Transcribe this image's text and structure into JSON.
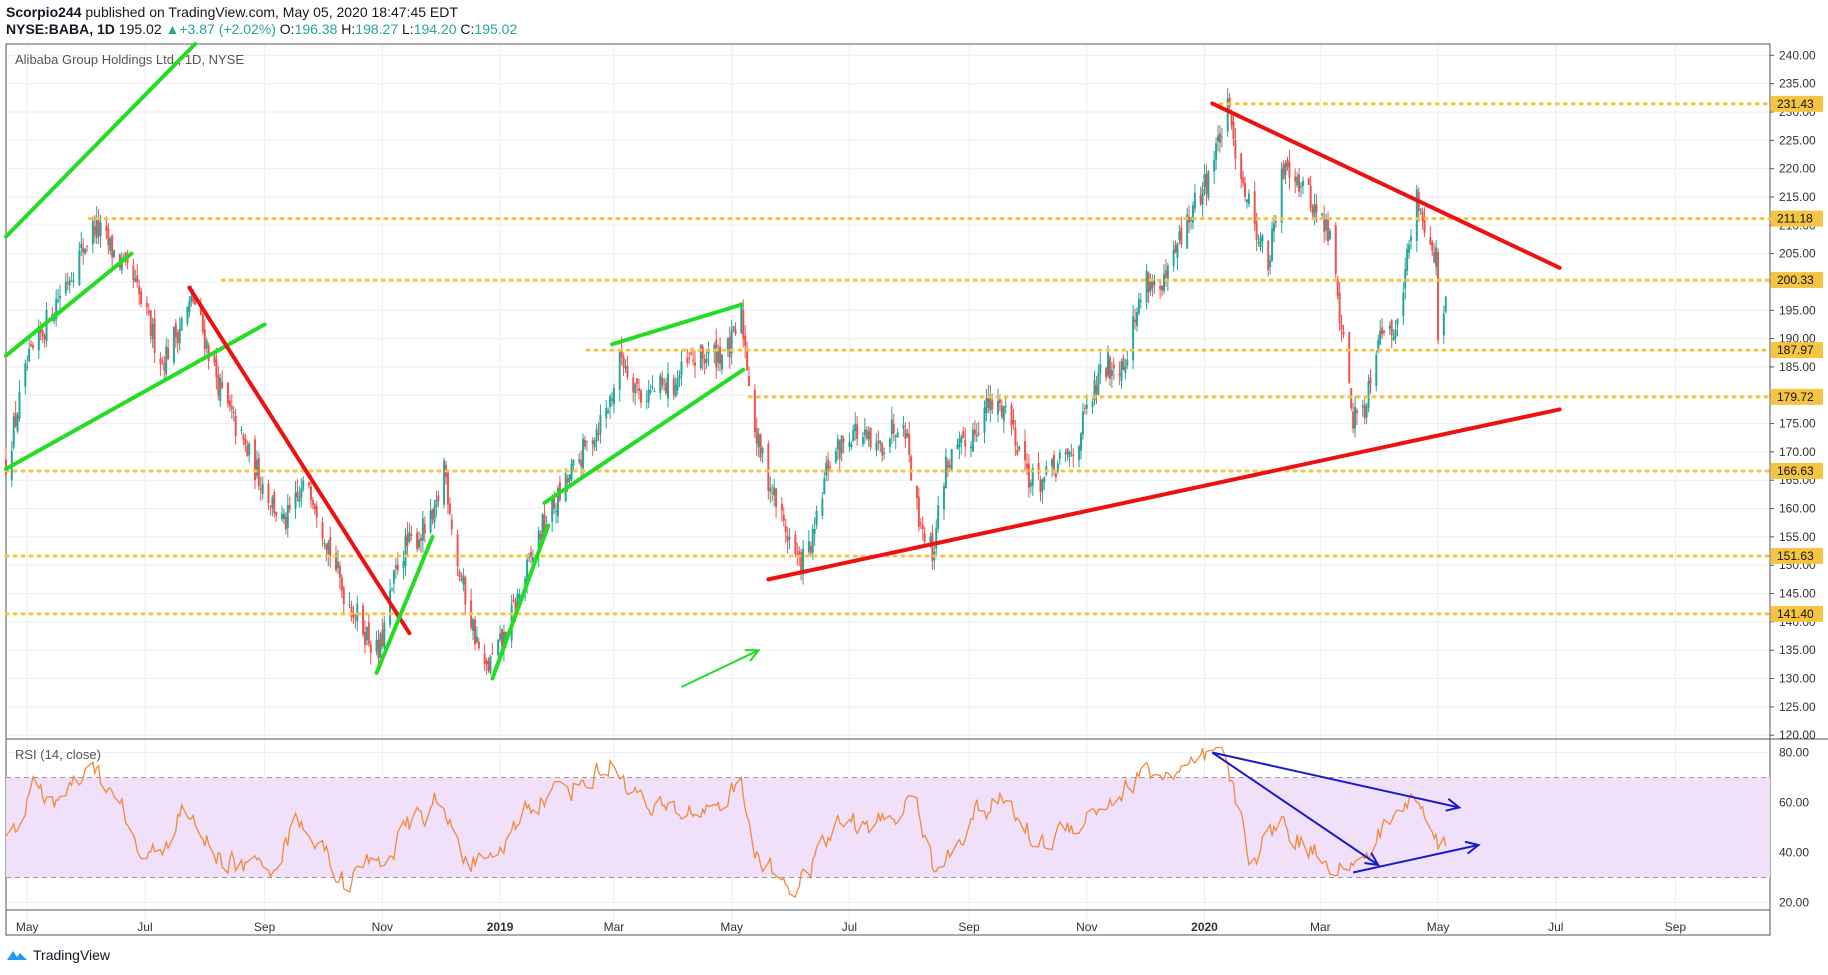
{
  "header": {
    "author": "Scorpio244",
    "published_text": "published on TradingView.com, May 05, 2020 18:47:45 EDT",
    "symbol": "NYSE:BABA, 1D",
    "last_price": "195.02",
    "change": "+3.87 (+2.02%)",
    "open_label": "O:",
    "open": "196.38",
    "high_label": "H:",
    "high": "198.27",
    "low_label": "L:",
    "low": "194.20",
    "close_label": "C:",
    "close": "195.02"
  },
  "footer": {
    "brand": "TradingView",
    "logo_icon": "tradingview-logo-icon"
  },
  "colors": {
    "candle_up": "#26a69a",
    "candle_down": "#ef5350",
    "trend_green": "#22dd22",
    "trend_red": "#ee1111",
    "level_line": "#f5c542",
    "level_badge": "#f5c542",
    "rsi_line": "#f08a3c",
    "rsi_band": "#f0e0fa",
    "rsi_arrows": "#1a1acc",
    "grid": "#eeeeee"
  },
  "chart_data": [
    {
      "type": "candlestick",
      "title": "Alibaba Group Holdings Ltd., 1D, NYSE",
      "x_ticks": [
        "May",
        "Jul",
        "Sep",
        "Nov",
        "2019",
        "Mar",
        "May",
        "Jul",
        "Sep",
        "Nov",
        "2020",
        "Mar",
        "May",
        "Jul",
        "Sep"
      ],
      "x_range": [
        "2018-04-20",
        "2020-10-20"
      ],
      "ylim": [
        119.5,
        242
      ],
      "y_ticks": [
        120,
        125,
        130,
        135,
        140,
        145,
        150,
        155,
        160,
        165,
        170,
        175,
        180,
        185,
        190,
        195,
        200,
        205,
        210,
        215,
        220,
        225,
        230,
        235,
        240
      ],
      "grid": true,
      "price_anchors": [
        [
          "2018-04-20",
          168
        ],
        [
          "2018-05-01",
          185
        ],
        [
          "2018-05-15",
          196
        ],
        [
          "2018-06-05",
          210
        ],
        [
          "2018-06-25",
          200
        ],
        [
          "2018-07-10",
          186
        ],
        [
          "2018-07-26",
          197
        ],
        [
          "2018-08-10",
          180
        ],
        [
          "2018-08-20",
          172
        ],
        [
          "2018-09-11",
          157
        ],
        [
          "2018-09-24",
          165
        ],
        [
          "2018-10-11",
          146
        ],
        [
          "2018-10-30",
          134
        ],
        [
          "2018-11-10",
          152
        ],
        [
          "2018-11-28",
          158
        ],
        [
          "2018-12-03",
          168
        ],
        [
          "2018-12-10",
          150
        ],
        [
          "2018-12-24",
          131
        ],
        [
          "2019-01-03",
          137
        ],
        [
          "2019-01-22",
          156
        ],
        [
          "2019-02-10",
          168
        ],
        [
          "2019-02-26",
          178
        ],
        [
          "2019-03-05",
          187
        ],
        [
          "2019-03-15",
          180
        ],
        [
          "2019-04-01",
          182
        ],
        [
          "2019-04-10",
          186
        ],
        [
          "2019-04-30",
          188
        ],
        [
          "2019-05-06",
          194
        ],
        [
          "2019-05-14",
          172
        ],
        [
          "2019-05-25",
          160
        ],
        [
          "2019-06-05",
          150
        ],
        [
          "2019-06-12",
          154
        ],
        [
          "2019-06-20",
          168
        ],
        [
          "2019-07-03",
          174
        ],
        [
          "2019-07-15",
          170
        ],
        [
          "2019-07-29",
          177
        ],
        [
          "2019-08-05",
          160
        ],
        [
          "2019-08-13",
          152
        ],
        [
          "2019-08-20",
          168
        ],
        [
          "2019-08-30",
          171
        ],
        [
          "2019-09-10",
          178
        ],
        [
          "2019-09-20",
          178
        ],
        [
          "2019-10-03",
          165
        ],
        [
          "2019-10-10",
          165
        ],
        [
          "2019-10-25",
          170
        ],
        [
          "2019-11-01",
          177
        ],
        [
          "2019-11-10",
          185
        ],
        [
          "2019-11-20",
          186
        ],
        [
          "2019-12-02",
          201
        ],
        [
          "2019-12-10",
          198
        ],
        [
          "2019-12-20",
          208
        ],
        [
          "2020-01-02",
          218
        ],
        [
          "2020-01-13",
          230
        ],
        [
          "2020-01-23",
          215
        ],
        [
          "2020-02-03",
          203
        ],
        [
          "2020-02-12",
          222
        ],
        [
          "2020-02-24",
          215
        ],
        [
          "2020-03-06",
          208
        ],
        [
          "2020-03-18",
          176
        ],
        [
          "2020-03-24",
          178
        ],
        [
          "2020-04-01",
          193
        ],
        [
          "2020-04-07",
          190
        ],
        [
          "2020-04-15",
          204
        ],
        [
          "2020-04-20",
          215
        ],
        [
          "2020-04-30",
          204
        ],
        [
          "2020-05-01",
          191
        ],
        [
          "2020-05-05",
          195.02
        ]
      ],
      "trendlines": [
        {
          "color": "green",
          "from": [
            "2018-04-20",
            208
          ],
          "to": [
            "2018-07-27",
            242
          ]
        },
        {
          "color": "green",
          "from": [
            "2018-04-20",
            187
          ],
          "to": [
            "2018-06-24",
            205
          ]
        },
        {
          "color": "green",
          "from": [
            "2018-04-20",
            167
          ],
          "to": [
            "2018-09-01",
            192.5
          ]
        },
        {
          "color": "red",
          "from": [
            "2018-07-24",
            199
          ],
          "to": [
            "2018-11-15",
            138
          ]
        },
        {
          "color": "green",
          "from": [
            "2018-10-29",
            131
          ],
          "to": [
            "2018-11-27",
            155
          ]
        },
        {
          "color": "green",
          "from": [
            "2018-12-28",
            130
          ],
          "to": [
            "2019-01-26",
            157
          ]
        },
        {
          "color": "green",
          "from": [
            "2019-01-24",
            161
          ],
          "to": [
            "2019-05-07",
            184.5
          ]
        },
        {
          "color": "green",
          "from": [
            "2019-02-28",
            189
          ],
          "to": [
            "2019-05-06",
            196
          ]
        },
        {
          "color": "red",
          "from": [
            "2019-05-20",
            147.5
          ],
          "to": [
            "2020-07-03",
            177.5
          ]
        },
        {
          "color": "red",
          "from": [
            "2020-01-05",
            231.5
          ],
          "to": [
            "2020-07-03",
            202.5
          ]
        }
      ],
      "arrow": {
        "color": "green",
        "from": [
          "2019-04-05",
          128.5
        ],
        "to": [
          "2019-05-15",
          135
        ]
      },
      "levels": [
        {
          "value": 231.43,
          "label": "231.43",
          "from": "2020-01-05"
        },
        {
          "value": 211.18,
          "label": "211.18",
          "from": "2018-06-02"
        },
        {
          "value": 200.33,
          "label": "200.33",
          "from": "2018-08-10"
        },
        {
          "value": 187.97,
          "label": "187.97",
          "from": "2019-02-15"
        },
        {
          "value": 179.72,
          "label": "179.72",
          "from": "2019-05-10"
        },
        {
          "value": 166.63,
          "label": "166.63",
          "from": "2018-04-20"
        },
        {
          "value": 151.63,
          "label": "151.63",
          "from": "2018-04-20"
        },
        {
          "value": 141.4,
          "label": "141.40",
          "from": "2018-04-20"
        }
      ]
    },
    {
      "type": "line",
      "title": "RSI (14, close)",
      "ylim": [
        17,
        85
      ],
      "y_ticks": [
        20,
        40,
        60,
        80
      ],
      "y_tick_labels": [
        "20.00",
        "40.00",
        "60.00",
        "80.00"
      ],
      "band": [
        30,
        70
      ],
      "grid": true,
      "rsi_anchors": [
        [
          "2018-04-20",
          45
        ],
        [
          "2018-05-05",
          65
        ],
        [
          "2018-05-20",
          60
        ],
        [
          "2018-06-05",
          72
        ],
        [
          "2018-06-20",
          55
        ],
        [
          "2018-07-01",
          33
        ],
        [
          "2018-07-20",
          55
        ],
        [
          "2018-08-10",
          38
        ],
        [
          "2018-09-01",
          32
        ],
        [
          "2018-09-20",
          55
        ],
        [
          "2018-10-12",
          28
        ],
        [
          "2018-11-01",
          38
        ],
        [
          "2018-11-28",
          60
        ],
        [
          "2018-12-10",
          45
        ],
        [
          "2018-12-26",
          30
        ],
        [
          "2019-01-15",
          60
        ],
        [
          "2019-02-10",
          68
        ],
        [
          "2019-03-01",
          76
        ],
        [
          "2019-03-20",
          55
        ],
        [
          "2019-04-20",
          58
        ],
        [
          "2019-05-06",
          66
        ],
        [
          "2019-05-15",
          35
        ],
        [
          "2019-06-05",
          26
        ],
        [
          "2019-06-25",
          52
        ],
        [
          "2019-07-15",
          50
        ],
        [
          "2019-08-05",
          62
        ],
        [
          "2019-08-15",
          29
        ],
        [
          "2019-09-01",
          55
        ],
        [
          "2019-09-20",
          60
        ],
        [
          "2019-10-08",
          42
        ],
        [
          "2019-10-25",
          52
        ],
        [
          "2019-11-15",
          62
        ],
        [
          "2019-12-03",
          72
        ],
        [
          "2019-12-20",
          70
        ],
        [
          "2020-01-01",
          75
        ],
        [
          "2020-01-10",
          80
        ],
        [
          "2020-01-25",
          38
        ],
        [
          "2020-02-10",
          52
        ],
        [
          "2020-02-24",
          42
        ],
        [
          "2020-03-16",
          35
        ],
        [
          "2020-03-20",
          32
        ],
        [
          "2020-04-05",
          52
        ],
        [
          "2020-04-20",
          62
        ],
        [
          "2020-04-30",
          45
        ],
        [
          "2020-05-01",
          40
        ],
        [
          "2020-05-05",
          45
        ]
      ],
      "arrows": [
        {
          "from": [
            "2020-01-05",
            80
          ],
          "to": [
            "2020-05-12",
            58
          ]
        },
        {
          "from": [
            "2020-01-05",
            80
          ],
          "to": [
            "2020-03-31",
            35
          ]
        },
        {
          "from": [
            "2020-03-18",
            32
          ],
          "to": [
            "2020-05-22",
            43
          ]
        }
      ]
    }
  ]
}
